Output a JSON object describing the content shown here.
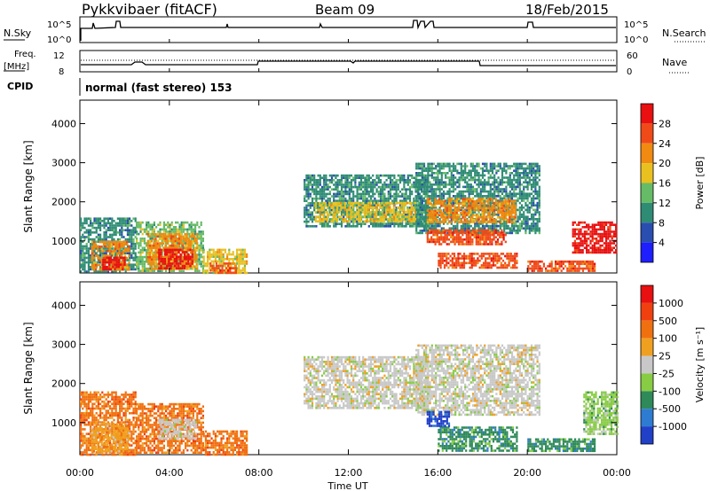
{
  "header": {
    "station": "Pykkvibaer (fitACF)",
    "beam": "Beam 09",
    "date": "18/Feb/2015",
    "cpid_label": "CPID",
    "cpid_text": "normal (fast stereo) 153"
  },
  "nsky_panel": {
    "left_label": "N.Sky",
    "right_label": "N.Search",
    "ticks_left": [
      "10^5",
      "10^0"
    ],
    "ticks_right": [
      "10^5",
      "10^0"
    ]
  },
  "freq_panel": {
    "left_label_1": "Freq.",
    "left_label_2": "[MHz]",
    "right_label": "Nave",
    "ticks_left": [
      "12",
      "8"
    ],
    "ticks_right": [
      "60",
      "0"
    ]
  },
  "x_axis": {
    "label": "Time UT",
    "ticks": [
      "00:00",
      "04:00",
      "08:00",
      "12:00",
      "16:00",
      "20:00",
      "00:00"
    ]
  },
  "chart_data": [
    {
      "type": "heatmap",
      "name": "power",
      "ylabel": "Slant Range [km]",
      "ylim": [
        180,
        4600
      ],
      "y_ticks": [
        1000,
        2000,
        3000,
        4000
      ],
      "xlim": [
        0,
        24
      ],
      "colorbar_label": "Power [dB]",
      "colorbar_ticks": [
        "4",
        "8",
        "12",
        "16",
        "20",
        "24",
        "28"
      ],
      "colorbar_colors": [
        "#1e1eff",
        "#2a4db0",
        "#2e8c74",
        "#66bb66",
        "#e8c020",
        "#f08a10",
        "#f04a18",
        "#e81010"
      ],
      "regions": [
        {
          "t0": 0.0,
          "t1": 2.5,
          "r0": 200,
          "r1": 1600,
          "level": 2
        },
        {
          "t0": 0.5,
          "t1": 2.2,
          "r0": 250,
          "r1": 1000,
          "level": 5
        },
        {
          "t0": 1.0,
          "t1": 2.0,
          "r0": 250,
          "r1": 600,
          "level": 7
        },
        {
          "t0": 2.5,
          "t1": 5.5,
          "r0": 250,
          "r1": 1500,
          "level": 3
        },
        {
          "t0": 3.0,
          "t1": 5.2,
          "r0": 300,
          "r1": 1200,
          "level": 5
        },
        {
          "t0": 3.5,
          "t1": 5.0,
          "r0": 300,
          "r1": 800,
          "level": 7
        },
        {
          "t0": 5.5,
          "t1": 7.5,
          "r0": 200,
          "r1": 800,
          "level": 4
        },
        {
          "t0": 5.8,
          "t1": 7.0,
          "r0": 200,
          "r1": 450,
          "level": 6
        },
        {
          "t0": 10.0,
          "t1": 15.5,
          "r0": 1400,
          "r1": 2700,
          "level": 2
        },
        {
          "t0": 10.5,
          "t1": 15.0,
          "r0": 1500,
          "r1": 2000,
          "level": 4
        },
        {
          "t0": 15.0,
          "t1": 20.5,
          "r0": 1200,
          "r1": 3000,
          "level": 2
        },
        {
          "t0": 15.5,
          "t1": 19.5,
          "r0": 1500,
          "r1": 2100,
          "level": 5
        },
        {
          "t0": 15.5,
          "t1": 19.0,
          "r0": 900,
          "r1": 1300,
          "level": 6
        },
        {
          "t0": 16.0,
          "t1": 19.5,
          "r0": 300,
          "r1": 700,
          "level": 6
        },
        {
          "t0": 20.0,
          "t1": 23.0,
          "r0": 250,
          "r1": 500,
          "level": 6
        },
        {
          "t0": 22.0,
          "t1": 24.0,
          "r0": 700,
          "r1": 1500,
          "level": 7
        }
      ]
    },
    {
      "type": "heatmap",
      "name": "velocity",
      "ylabel": "Slant Range [km]",
      "ylim": [
        180,
        4600
      ],
      "y_ticks": [
        1000,
        2000,
        3000,
        4000
      ],
      "xlim": [
        0,
        24
      ],
      "colorbar_label": "Velocity [m s⁻¹]",
      "colorbar_ticks": [
        "1000",
        "500",
        "100",
        "25",
        "-25",
        "-100",
        "-500",
        "-1000"
      ],
      "colorbar_colors": [
        "#2040c8",
        "#2e7bd2",
        "#2f8a5a",
        "#88cc44",
        "#c8c8c8",
        "#f0a020",
        "#f07010",
        "#f04010",
        "#e81010"
      ],
      "regions": [
        {
          "t0": 0.0,
          "t1": 2.5,
          "r0": 200,
          "r1": 1800,
          "level": 6
        },
        {
          "t0": 0.5,
          "t1": 2.2,
          "r0": 250,
          "r1": 1000,
          "level": 5
        },
        {
          "t0": 2.5,
          "t1": 5.5,
          "r0": 250,
          "r1": 1500,
          "level": 6
        },
        {
          "t0": 3.5,
          "t1": 5.2,
          "r0": 600,
          "r1": 1100,
          "level": 4
        },
        {
          "t0": 5.5,
          "t1": 7.5,
          "r0": 200,
          "r1": 800,
          "level": 6
        },
        {
          "t0": 10.0,
          "t1": 15.5,
          "r0": 1400,
          "r1": 2700,
          "level": 4
        },
        {
          "t0": 15.0,
          "t1": 20.5,
          "r0": 1200,
          "r1": 3000,
          "level": 4
        },
        {
          "t0": 16.0,
          "t1": 19.5,
          "r0": 300,
          "r1": 900,
          "level": 2
        },
        {
          "t0": 15.5,
          "t1": 16.5,
          "r0": 900,
          "r1": 1300,
          "level": 0
        },
        {
          "t0": 20.0,
          "t1": 23.0,
          "r0": 250,
          "r1": 600,
          "level": 2
        },
        {
          "t0": 22.5,
          "t1": 24.0,
          "r0": 700,
          "r1": 1800,
          "level": 3
        }
      ]
    }
  ]
}
